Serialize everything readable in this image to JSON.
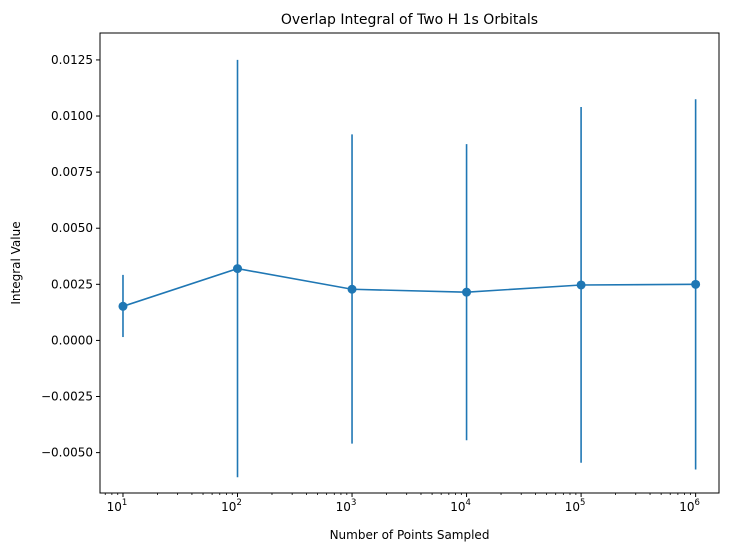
{
  "chart_data": {
    "type": "line",
    "title": "Overlap Integral of Two H 1s Orbitals",
    "xlabel": "Number of Points Sampled",
    "ylabel": "Integral Value",
    "x_scale": "log",
    "x_tick_values": [
      10,
      100,
      1000,
      10000,
      100000,
      1000000
    ],
    "x_tick_labels": [
      {
        "base": "10",
        "exp": "1"
      },
      {
        "base": "10",
        "exp": "2"
      },
      {
        "base": "10",
        "exp": "3"
      },
      {
        "base": "10",
        "exp": "4"
      },
      {
        "base": "10",
        "exp": "5"
      },
      {
        "base": "10",
        "exp": "6"
      }
    ],
    "xlim": [
      6.3,
      1600000
    ],
    "ylim": [
      -0.0068,
      0.0137
    ],
    "y_ticks": [
      -0.005,
      -0.0025,
      0.0,
      0.0025,
      0.005,
      0.0075,
      0.01,
      0.0125
    ],
    "y_tick_labels": [
      "−0.0050",
      "−0.0025",
      "0.0000",
      "0.0025",
      "0.0050",
      "0.0075",
      "0.0100",
      "0.0125"
    ],
    "grid": false,
    "color": "#1f77b4",
    "series": [
      {
        "x": [
          10,
          100,
          1000,
          10000,
          100000,
          1000000
        ],
        "y": [
          0.00152,
          0.0032,
          0.00228,
          0.00215,
          0.00247,
          0.0025
        ],
        "yerr_low": [
          0.00015,
          -0.0061,
          -0.0046,
          -0.00445,
          -0.00545,
          -0.00575
        ],
        "yerr_high": [
          0.00292,
          0.0125,
          0.00918,
          0.00875,
          0.0104,
          0.01075
        ]
      }
    ]
  }
}
